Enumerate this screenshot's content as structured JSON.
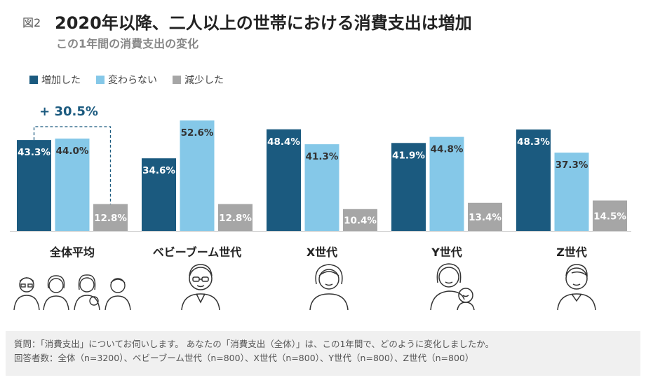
{
  "header": {
    "figure_label": "図2",
    "title": "2020年以降、二人以上の世帯における消費支出は増加",
    "subtitle": "この1年間の消費支出の変化"
  },
  "colors": {
    "increased": "#1b5a7f",
    "unchanged": "#85c8e8",
    "decreased": "#a6a6a6",
    "annotation": "#1b5a7f"
  },
  "chart_data": {
    "type": "bar",
    "title": "",
    "xlabel": "",
    "ylabel": "",
    "ylim": [
      0,
      60
    ],
    "grid": false,
    "legend_position": "top-left",
    "categories": [
      "全体平均",
      "ベビーブーム世代",
      "X世代",
      "Y世代",
      "Z世代"
    ],
    "series": [
      {
        "name": "増加した",
        "values": [
          43.3,
          34.6,
          48.4,
          41.9,
          48.3
        ]
      },
      {
        "name": "変わらない",
        "values": [
          44.0,
          52.6,
          41.3,
          44.8,
          37.3
        ]
      },
      {
        "name": "減少した",
        "values": [
          12.8,
          12.8,
          10.4,
          13.4,
          14.5
        ]
      }
    ],
    "data_labels": [
      [
        "43.3%",
        "44.0%",
        "12.8%"
      ],
      [
        "34.6%",
        "52.6%",
        "12.8%"
      ],
      [
        "48.4%",
        "41.3%",
        "10.4%"
      ],
      [
        "41.9%",
        "44.8%",
        "13.4%"
      ],
      [
        "48.3%",
        "37.3%",
        "14.5%"
      ]
    ],
    "annotation": {
      "text": "+ 30.5%",
      "category": "全体平均",
      "value": 30.5
    }
  },
  "illustrations": [
    {
      "category": "全体平均",
      "icon": "family-group-icon"
    },
    {
      "category": "ベビーブーム世代",
      "icon": "elderly-man-icon"
    },
    {
      "category": "X世代",
      "icon": "middle-aged-woman-icon"
    },
    {
      "category": "Y世代",
      "icon": "parent-with-baby-icon"
    },
    {
      "category": "Z世代",
      "icon": "young-man-icon"
    }
  ],
  "footer": {
    "question": "質問：「消費支出」についてお伺いします。 あなたの「消費支出（全体）」は、この1年間で、どのように変化しましたか。",
    "respondents": "回答者数：全体（n=3200）、ベビーブーム世代（n=800）、X世代（n=800）、Y世代（n=800）、Z世代（n=800）"
  }
}
